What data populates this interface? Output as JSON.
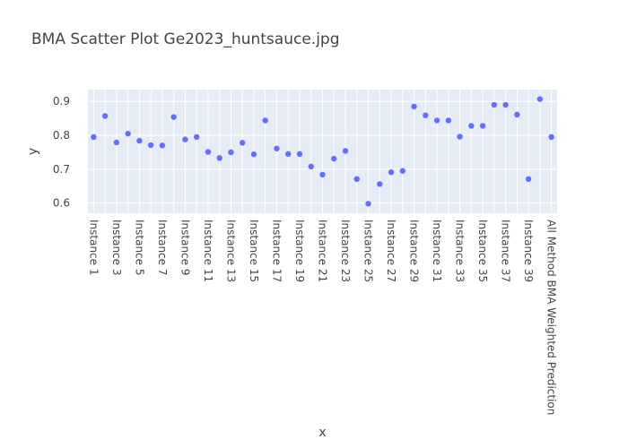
{
  "chart_data": {
    "type": "scatter",
    "title": "BMA Scatter Plot Ge2023_huntsauce.jpg",
    "xlabel": "x",
    "ylabel": "y",
    "ylim": [
      0.57,
      0.935
    ],
    "yticks": [
      0.6,
      0.7,
      0.8,
      0.9
    ],
    "ytick_labels": [
      "0.6",
      "0.7",
      "0.8",
      "0.9"
    ],
    "grid": true,
    "marker_color": "#636efa",
    "plot_bg": "#e5ecf6",
    "categories": [
      "Instance 1",
      "Instance 2",
      "Instance 3",
      "Instance 4",
      "Instance 5",
      "Instance 6",
      "Instance 7",
      "Instance 8",
      "Instance 9",
      "Instance 10",
      "Instance 11",
      "Instance 12",
      "Instance 13",
      "Instance 14",
      "Instance 15",
      "Instance 16",
      "Instance 17",
      "Instance 18",
      "Instance 19",
      "Instance 20",
      "Instance 21",
      "Instance 22",
      "Instance 23",
      "Instance 24",
      "Instance 25",
      "Instance 26",
      "Instance 27",
      "Instance 28",
      "Instance 29",
      "Instance 30",
      "Instance 31",
      "Instance 32",
      "Instance 33",
      "Instance 34",
      "Instance 35",
      "Instance 36",
      "Instance 37",
      "Instance 38",
      "Instance 39",
      "Instance 40",
      "All Method BMA Weighted Prediction"
    ],
    "xtick_labels_shown": [
      "Instance 1",
      "Instance 3",
      "Instance 5",
      "Instance 7",
      "Instance 9",
      "Instance 11",
      "Instance 13",
      "Instance 15",
      "Instance 17",
      "Instance 19",
      "Instance 21",
      "Instance 23",
      "Instance 25",
      "Instance 27",
      "Instance 29",
      "Instance 31",
      "Instance 33",
      "Instance 35",
      "Instance 37",
      "Instance 39",
      "All Method BMA Weighted Prediction"
    ],
    "xtick_indices_shown": [
      0,
      2,
      4,
      6,
      8,
      10,
      12,
      14,
      16,
      18,
      20,
      22,
      24,
      26,
      28,
      30,
      32,
      34,
      36,
      38,
      40
    ],
    "values": [
      0.795,
      0.857,
      0.779,
      0.805,
      0.784,
      0.771,
      0.77,
      0.854,
      0.788,
      0.795,
      0.751,
      0.733,
      0.75,
      0.778,
      0.744,
      0.844,
      0.761,
      0.745,
      0.745,
      0.708,
      0.684,
      0.731,
      0.754,
      0.671,
      0.598,
      0.656,
      0.691,
      0.695,
      0.885,
      0.859,
      0.844,
      0.844,
      0.796,
      0.828,
      0.828,
      0.89,
      0.89,
      0.861,
      0.671,
      0.907,
      0.795
    ]
  }
}
